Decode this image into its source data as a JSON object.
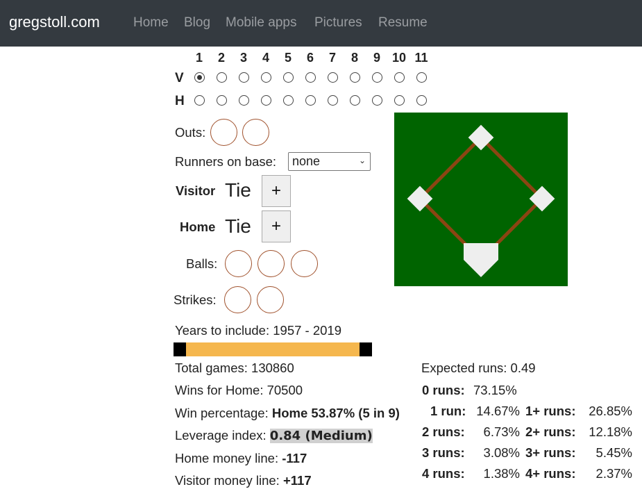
{
  "nav": {
    "brand": "gregstoll.com",
    "links": [
      "Home",
      "Blog",
      "Mobile apps",
      "Pictures",
      "Resume"
    ]
  },
  "innings": {
    "numbers": [
      "1",
      "2",
      "3",
      "4",
      "5",
      "6",
      "7",
      "8",
      "9",
      "10",
      "11"
    ],
    "visitor_label": "V",
    "home_label": "H",
    "selected": "V1"
  },
  "outs_label": "Outs:",
  "runners": {
    "label": "Runners on base:",
    "value": "none"
  },
  "score": {
    "visitor_label": "Visitor",
    "visitor_value": "Tie",
    "home_label": "Home",
    "home_value": "Tie",
    "plus": "+"
  },
  "balls_label": "Balls:",
  "strikes_label": "Strikes:",
  "years": {
    "label": "Years to include: 1957 - 2019",
    "start": 1957,
    "end": 2019
  },
  "stats": {
    "total_games": "Total games: 130860",
    "wins_for_home": "Wins for Home: 70500",
    "win_pct_label": "Win percentage: ",
    "win_pct_value": "Home 53.87% (5 in 9)",
    "leverage_label": "Leverage index: ",
    "leverage_value": "0.84 (Medium)",
    "home_ml_label": "Home money line: ",
    "home_ml_value": "-117",
    "visitor_ml_label": "Visitor money line: ",
    "visitor_ml_value": "+117"
  },
  "runs": {
    "expected": "Expected runs: 0.49",
    "rows": [
      {
        "label": "0 runs:",
        "value": "73.15%",
        "plus_label": "",
        "plus_value": ""
      },
      {
        "label": "1 run:",
        "value": "14.67%",
        "plus_label": "1+ runs:",
        "plus_value": "26.85%"
      },
      {
        "label": "2 runs:",
        "value": "6.73%",
        "plus_label": "2+ runs:",
        "plus_value": "12.18%"
      },
      {
        "label": "3 runs:",
        "value": "3.08%",
        "plus_label": "3+ runs:",
        "plus_value": "5.45%"
      },
      {
        "label": "4 runs:",
        "value": "1.38%",
        "plus_label": "4+ runs:",
        "plus_value": "2.37%"
      }
    ]
  },
  "colors": {
    "field": "#006400",
    "base_path": "#8b4513",
    "slider": "#f5b74e",
    "navbar": "#343a40"
  }
}
